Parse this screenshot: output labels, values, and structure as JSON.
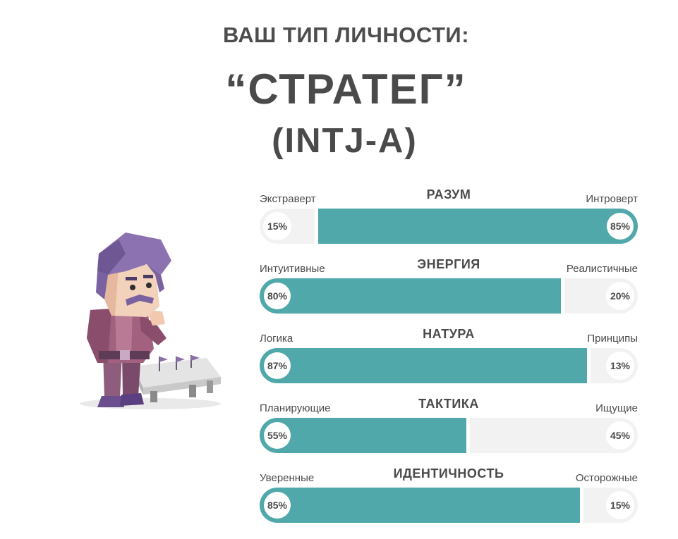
{
  "header": {
    "subtitle": "ВАШ ТИП ЛИЧНОСТИ:",
    "type_name": "“СТРАТЕГ”",
    "type_code": "(INTJ-A)"
  },
  "colors": {
    "accent": "#51a8aa",
    "track": "#f2f2f2",
    "text": "#4a4a4a"
  },
  "traits": [
    {
      "title": "РАЗУМ",
      "left_label": "Экстраверт",
      "right_label": "Интроверт",
      "left_pct": "15%",
      "right_pct": "85%",
      "left_value": 15,
      "right_value": 85,
      "dominant": "right"
    },
    {
      "title": "ЭНЕРГИЯ",
      "left_label": "Интуитивные",
      "right_label": "Реалистичные",
      "left_pct": "80%",
      "right_pct": "20%",
      "left_value": 80,
      "right_value": 20,
      "dominant": "left"
    },
    {
      "title": "НАТУРА",
      "left_label": "Логика",
      "right_label": "Принципы",
      "left_pct": "87%",
      "right_pct": "13%",
      "left_value": 87,
      "right_value": 13,
      "dominant": "left"
    },
    {
      "title": "ТАКТИКА",
      "left_label": "Планирующие",
      "right_label": "Ищущие",
      "left_pct": "55%",
      "right_pct": "45%",
      "left_value": 55,
      "right_value": 45,
      "dominant": "left"
    },
    {
      "title": "ИДЕНТИЧНОСТЬ",
      "left_label": "Уверенные",
      "right_label": "Осторожные",
      "left_pct": "85%",
      "right_pct": "15%",
      "left_value": 85,
      "right_value": 15,
      "dominant": "left"
    }
  ]
}
